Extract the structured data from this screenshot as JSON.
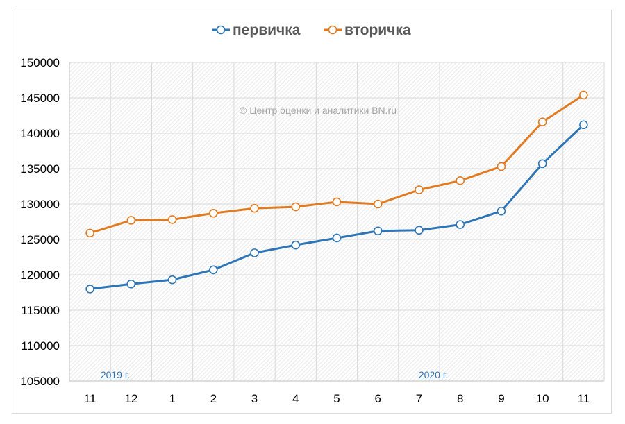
{
  "chart_data": {
    "type": "line",
    "categories": [
      "11",
      "12",
      "1",
      "2",
      "3",
      "4",
      "5",
      "6",
      "7",
      "8",
      "9",
      "10",
      "11"
    ],
    "series": [
      {
        "name": "первичка",
        "color": "#2e75b6",
        "values": [
          118000,
          118700,
          119300,
          120700,
          123100,
          124200,
          125200,
          126200,
          126300,
          127100,
          129000,
          135700,
          141200
        ]
      },
      {
        "name": "вторичка",
        "color": "#e07b22",
        "values": [
          125900,
          127700,
          127800,
          128700,
          129400,
          129600,
          130300,
          130000,
          132000,
          133300,
          135300,
          141600,
          145400
        ]
      }
    ],
    "ylim": [
      105000,
      150000
    ],
    "yticks": [
      105000,
      110000,
      115000,
      120000,
      125000,
      130000,
      135000,
      140000,
      145000,
      150000
    ],
    "grid": true,
    "legend_position": "top-center",
    "annotations": {
      "watermark": "© Центр оценки и аналитики BN.ru",
      "period_2019": "2019 г.",
      "period_2020": "2020 г."
    }
  }
}
